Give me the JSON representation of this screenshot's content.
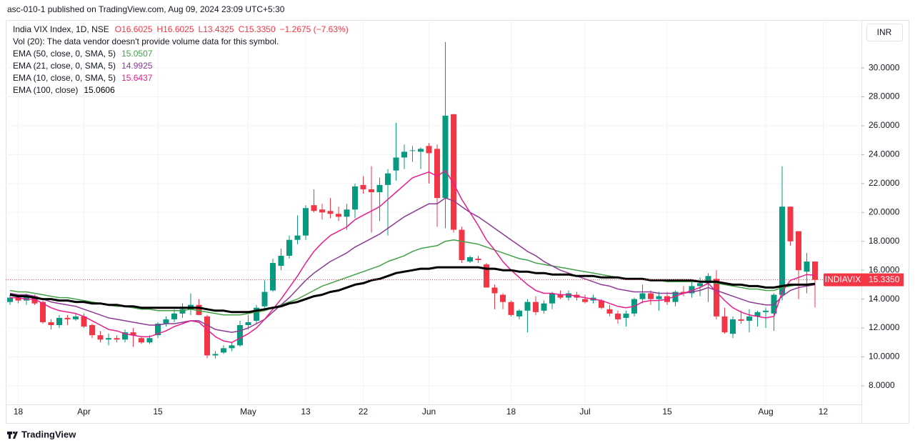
{
  "header": "asc-010-1 published on TradingView.com, Aug 09, 2024 23:09 UTC+5:30",
  "footer": "TradingView",
  "chart_data": {
    "type": "candlestick",
    "title": "India VIX Index, 1D, NSE",
    "ohlc_labels": [
      "O16.6025",
      "H16.6025",
      "L13.4325",
      "C15.3350"
    ],
    "change_label": "−1.2675 (−7.63%)",
    "volume_note": "Vol (20): The data vendor doesn't provide volume data for this symbol.",
    "currency": "INR",
    "up_color": "#089981",
    "down_color": "#f23645",
    "categories": [
      null,
      "18",
      null,
      null,
      null,
      null,
      null,
      null,
      null,
      "Apr",
      null,
      null,
      null,
      null,
      null,
      null,
      null,
      null,
      "15",
      null,
      null,
      null,
      null,
      null,
      null,
      null,
      null,
      null,
      null,
      "May",
      null,
      null,
      null,
      null,
      null,
      null,
      "13",
      null,
      null,
      null,
      null,
      null,
      null,
      "22",
      null,
      null,
      null,
      null,
      null,
      null,
      null,
      "Jun",
      null,
      null,
      null,
      null,
      null,
      null,
      null,
      null,
      null,
      "18",
      null,
      null,
      null,
      null,
      null,
      null,
      null,
      null,
      "Jul",
      null,
      null,
      null,
      null,
      null,
      null,
      null,
      null,
      null,
      "15",
      null,
      null,
      null,
      null,
      null,
      null,
      null,
      null,
      null,
      null,
      null,
      "Aug",
      null,
      null,
      null,
      null,
      null,
      null,
      "12"
    ],
    "open": [
      13.8,
      14.1,
      13.9,
      14.2,
      13.8,
      12.4,
      12.2,
      12.7,
      12.6,
      12.8,
      12.2,
      11.5,
      11.2,
      11.3,
      11.2,
      11.7,
      11.3,
      11.0,
      11.5,
      12.3,
      12.6,
      13.0,
      13.3,
      13.6,
      12.8,
      10.1,
      10.3,
      10.6,
      10.8,
      12.2,
      12.5,
      13.5,
      14.6,
      16.3,
      17.0,
      18.1,
      18.4,
      20.5,
      20.2,
      20.1,
      19.9,
      19.7,
      20.2,
      21.9,
      21.6,
      21.4,
      21.9,
      22.9,
      23.8,
      24.3,
      24.2,
      24.6,
      24.4,
      21.0,
      26.8,
      18.8,
      16.6,
      16.8,
      16.4,
      14.8,
      14.3,
      13.8,
      12.8,
      13.2,
      13.8,
      13.2,
      13.7,
      14.3,
      14.1,
      14.3,
      14.0,
      13.9,
      13.9,
      13.3,
      13.0,
      12.7,
      13.0,
      14.0,
      14.4,
      14.0,
      14.2,
      13.8,
      14.5,
      14.4,
      14.9,
      15.1,
      15.4,
      12.8,
      11.6,
      12.6,
      12.5,
      12.8,
      13.1,
      13.0,
      14.3,
      20.4,
      18.7,
      15.9,
      16.6025,
      null
    ],
    "high": [
      14.3,
      14.3,
      14.4,
      14.3,
      13.9,
      12.6,
      12.9,
      12.9,
      13.0,
      13.0,
      12.3,
      11.8,
      11.6,
      11.5,
      11.9,
      12.0,
      11.4,
      11.5,
      12.4,
      12.8,
      13.3,
      13.7,
      14.4,
      14.0,
      12.9,
      10.4,
      10.8,
      11.0,
      12.5,
      12.9,
      13.6,
      15.3,
      16.8,
      17.5,
      18.4,
      19.8,
      20.5,
      21.6,
      20.6,
      21.0,
      20.4,
      20.6,
      22.0,
      22.5,
      23.2,
      22.4,
      23.0,
      26.2,
      24.7,
      24.6,
      24.5,
      24.8,
      24.7,
      31.8,
      26.8,
      19.0,
      17.0,
      17.0,
      16.5,
      15.0,
      14.4,
      13.9,
      13.3,
      14.0,
      14.2,
      13.9,
      14.5,
      14.6,
      14.6,
      14.5,
      14.3,
      14.3,
      14.0,
      13.6,
      13.2,
      13.2,
      14.1,
      15.0,
      14.6,
      14.5,
      14.5,
      14.6,
      14.9,
      15.2,
      15.5,
      15.8,
      16.0,
      13.4,
      12.8,
      13.2,
      13.3,
      13.2,
      13.4,
      14.4,
      23.2,
      20.4,
      18.7,
      17.2,
      16.6025,
      null
    ],
    "low": [
      13.6,
      13.7,
      13.6,
      13.6,
      12.3,
      11.9,
      12.0,
      12.2,
      12.5,
      12.0,
      11.3,
      11.0,
      10.8,
      11.0,
      11.0,
      10.7,
      10.9,
      10.9,
      11.3,
      12.1,
      12.4,
      12.7,
      12.9,
      12.9,
      9.9,
      9.9,
      10.2,
      10.4,
      10.7,
      11.9,
      12.3,
      13.4,
      14.5,
      16.0,
      16.8,
      17.8,
      18.1,
      20.0,
      19.5,
      19.6,
      19.4,
      18.8,
      19.6,
      21.3,
      18.6,
      19.4,
      18.4,
      22.2,
      23.0,
      23.5,
      23.0,
      22.0,
      19.0,
      18.9,
      18.6,
      16.5,
      16.5,
      16.5,
      14.8,
      13.3,
      13.3,
      12.8,
      12.6,
      11.7,
      12.9,
      13.0,
      13.3,
      14.0,
      13.9,
      13.9,
      13.7,
      13.7,
      13.3,
      12.8,
      12.3,
      12.1,
      12.8,
      13.7,
      13.6,
      13.2,
      13.6,
      13.5,
      14.2,
      14.1,
      14.2,
      13.8,
      12.6,
      11.6,
      11.3,
      12.3,
      11.7,
      12.1,
      12.0,
      11.8,
      13.9,
      17.7,
      14.0,
      14.4,
      13.4325,
      null
    ],
    "close": [
      14.1,
      13.9,
      14.2,
      13.7,
      12.4,
      12.2,
      12.7,
      12.6,
      12.8,
      12.1,
      11.5,
      11.2,
      11.3,
      11.2,
      11.7,
      11.5,
      11.0,
      11.3,
      12.3,
      12.6,
      13.0,
      13.3,
      13.6,
      12.9,
      10.1,
      10.2,
      10.6,
      10.8,
      12.2,
      12.4,
      13.4,
      14.5,
      16.5,
      17.0,
      18.1,
      18.4,
      20.3,
      20.1,
      20.0,
      19.9,
      19.7,
      20.2,
      21.8,
      21.6,
      21.4,
      21.9,
      22.7,
      23.8,
      24.2,
      24.3,
      24.4,
      24.1,
      21.0,
      26.7,
      18.8,
      16.7,
      16.9,
      16.7,
      14.8,
      14.4,
      13.8,
      12.9,
      13.2,
      13.8,
      13.1,
      13.7,
      14.4,
      14.1,
      14.4,
      14.1,
      13.8,
      14.1,
      13.4,
      13.0,
      12.6,
      13.0,
      14.0,
      14.4,
      14.0,
      14.2,
      13.8,
      14.5,
      14.4,
      14.9,
      15.1,
      15.6,
      12.8,
      11.7,
      12.6,
      12.5,
      12.8,
      13.1,
      13.2,
      14.3,
      20.4,
      18.0,
      16.0,
      16.6,
      15.335,
      null
    ],
    "series": [
      {
        "name": "EMA (50, close, 0, SMA, 5)",
        "color": "#43a047",
        "width": 1.5,
        "values": [
          14.6,
          14.5,
          14.5,
          14.4,
          14.3,
          14.2,
          14.1,
          14.1,
          14.0,
          13.9,
          13.8,
          13.7,
          13.6,
          13.5,
          13.5,
          13.4,
          13.3,
          13.3,
          13.2,
          13.2,
          13.2,
          13.2,
          13.3,
          13.2,
          13.1,
          13.0,
          12.9,
          12.9,
          12.9,
          13.0,
          13.1,
          13.2,
          13.4,
          13.6,
          13.8,
          14.0,
          14.3,
          14.6,
          14.9,
          15.1,
          15.3,
          15.5,
          15.7,
          15.9,
          16.1,
          16.3,
          16.6,
          16.8,
          17.0,
          17.3,
          17.5,
          17.6,
          17.7,
          18.0,
          18.1,
          18.0,
          17.9,
          17.8,
          17.6,
          17.4,
          17.2,
          17.0,
          16.8,
          16.7,
          16.5,
          16.4,
          16.3,
          16.2,
          16.1,
          16.0,
          15.9,
          15.8,
          15.7,
          15.6,
          15.5,
          15.4,
          15.4,
          15.4,
          15.3,
          15.3,
          15.2,
          15.2,
          15.2,
          15.2,
          15.2,
          15.2,
          15.1,
          15.0,
          14.9,
          14.8,
          14.7,
          14.7,
          14.6,
          14.6,
          14.8,
          14.9,
          15.0,
          15.0,
          15.0507,
          null
        ]
      },
      {
        "name": "EMA (21, close, 0, SMA, 5)",
        "color": "#8e3a94",
        "width": 1.5,
        "values": [
          14.4,
          14.3,
          14.3,
          14.2,
          14.0,
          13.8,
          13.7,
          13.6,
          13.5,
          13.3,
          13.1,
          12.9,
          12.7,
          12.6,
          12.5,
          12.4,
          12.3,
          12.2,
          12.2,
          12.3,
          12.3,
          12.4,
          12.5,
          12.5,
          12.2,
          11.9,
          11.8,
          11.7,
          11.8,
          12.0,
          12.3,
          12.6,
          13.1,
          13.6,
          14.1,
          14.7,
          15.3,
          15.8,
          16.2,
          16.6,
          16.9,
          17.2,
          17.6,
          17.9,
          18.2,
          18.5,
          18.9,
          19.3,
          19.7,
          20.0,
          20.3,
          20.6,
          20.6,
          21.0,
          20.8,
          20.4,
          20.0,
          19.7,
          19.3,
          18.9,
          18.5,
          18.1,
          17.7,
          17.3,
          17.0,
          16.6,
          16.3,
          16.0,
          15.8,
          15.6,
          15.4,
          15.2,
          15.0,
          14.9,
          14.7,
          14.6,
          14.5,
          14.5,
          14.5,
          14.4,
          14.4,
          14.4,
          14.4,
          14.5,
          14.6,
          14.8,
          14.6,
          14.4,
          14.2,
          14.0,
          13.8,
          13.7,
          13.6,
          13.6,
          14.2,
          14.6,
          14.8,
          14.9,
          14.9925,
          null
        ]
      },
      {
        "name": "EMA (10, close, 0, SMA, 5)",
        "color": "#e91e8c",
        "width": 1.5,
        "values": [
          14.1,
          14.1,
          14.0,
          14.0,
          13.7,
          13.4,
          13.2,
          13.1,
          13.0,
          12.8,
          12.5,
          12.2,
          11.9,
          11.8,
          11.6,
          11.5,
          11.4,
          11.4,
          11.6,
          11.8,
          12.1,
          12.3,
          12.5,
          12.4,
          11.9,
          11.4,
          11.1,
          11.0,
          11.3,
          11.6,
          12.0,
          12.6,
          13.3,
          14.0,
          14.8,
          15.6,
          16.5,
          17.3,
          17.9,
          18.4,
          18.7,
          19.0,
          19.5,
          19.8,
          20.1,
          20.4,
          20.9,
          21.4,
          21.9,
          22.4,
          22.6,
          22.8,
          22.5,
          22.9,
          22.0,
          20.9,
          20.0,
          19.1,
          18.1,
          17.4,
          16.6,
          16.0,
          15.5,
          15.0,
          14.6,
          14.4,
          14.4,
          14.3,
          14.3,
          14.2,
          14.1,
          14.0,
          13.9,
          13.7,
          13.5,
          13.4,
          13.5,
          13.8,
          13.9,
          13.9,
          14.0,
          14.2,
          14.4,
          14.6,
          14.8,
          15.1,
          14.5,
          13.9,
          13.4,
          13.1,
          12.9,
          12.8,
          12.7,
          12.8,
          14.5,
          15.3,
          15.5,
          15.7,
          15.6437,
          null
        ]
      },
      {
        "name": "EMA (100, close)",
        "color": "#000000",
        "width": 3,
        "values": [
          14.3,
          14.2,
          14.2,
          14.1,
          14.0,
          14.0,
          13.9,
          13.9,
          13.8,
          13.8,
          13.7,
          13.7,
          13.6,
          13.6,
          13.5,
          13.5,
          13.4,
          13.4,
          13.4,
          13.4,
          13.4,
          13.4,
          13.4,
          13.4,
          13.3,
          13.2,
          13.2,
          13.1,
          13.1,
          13.1,
          13.2,
          13.3,
          13.4,
          13.5,
          13.7,
          13.8,
          14.0,
          14.2,
          14.3,
          14.5,
          14.6,
          14.8,
          15.0,
          15.1,
          15.3,
          15.4,
          15.6,
          15.8,
          15.9,
          16.0,
          16.1,
          16.1,
          16.2,
          16.2,
          16.2,
          16.2,
          16.2,
          16.2,
          16.1,
          16.1,
          16.0,
          16.0,
          15.9,
          15.9,
          15.8,
          15.8,
          15.7,
          15.7,
          15.7,
          15.6,
          15.6,
          15.6,
          15.5,
          15.5,
          15.5,
          15.4,
          15.4,
          15.4,
          15.3,
          15.3,
          15.3,
          15.3,
          15.3,
          15.3,
          15.2,
          15.2,
          15.2,
          15.1,
          15.0,
          15.0,
          14.9,
          14.9,
          14.8,
          14.8,
          14.9,
          15.0,
          15.0,
          15.0,
          15.0606,
          null
        ]
      }
    ],
    "price_label": {
      "symbol": "INDIAVIX",
      "value": 15.335,
      "value_label": "15.3350"
    },
    "ylim": [
      6.71,
      33.22
    ],
    "yticks": [
      {
        "value": 8,
        "label": "8.0000"
      },
      {
        "value": 10,
        "label": "10.0000"
      },
      {
        "value": 12,
        "label": "12.0000"
      },
      {
        "value": 14,
        "label": "14.0000"
      },
      {
        "value": 16,
        "label": "16.0000"
      },
      {
        "value": 18,
        "label": "18.0000"
      },
      {
        "value": 20,
        "label": "20.0000"
      },
      {
        "value": 22,
        "label": "22.0000"
      },
      {
        "value": 24,
        "label": "24.0000"
      },
      {
        "value": 26,
        "label": "26.0000"
      },
      {
        "value": 28,
        "label": "28.0000"
      },
      {
        "value": 30,
        "label": "30.0000"
      }
    ],
    "grid": true
  }
}
